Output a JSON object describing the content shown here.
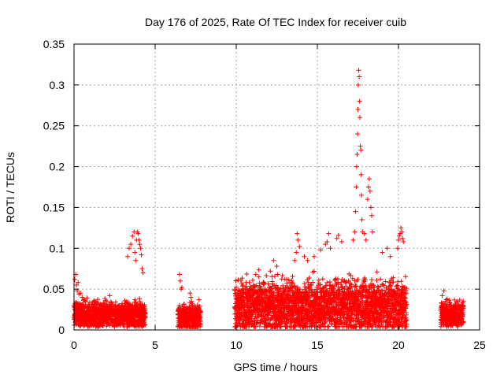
{
  "chart_data": {
    "type": "scatter",
    "title": "Day 176 of 2025, Rate Of TEC Index for receiver cuib",
    "xlabel": "GPS time / hours",
    "ylabel": "ROTI / TECUs",
    "xlim": [
      0,
      25
    ],
    "ylim": [
      0,
      0.35
    ],
    "xticks": [
      "0",
      "5",
      "10",
      "15",
      "20",
      "25"
    ],
    "yticks": [
      "0",
      "0.05",
      "0.1",
      "0.15",
      "0.2",
      "0.25",
      "0.3",
      "0.35"
    ],
    "grid": true,
    "marker": "+",
    "color": "#ff0000",
    "segments": [
      {
        "start": 0.0,
        "end": 4.4,
        "base": 0.015,
        "spread": 0.015
      },
      {
        "start": 6.4,
        "end": 7.8,
        "base": 0.012,
        "spread": 0.015
      },
      {
        "start": 9.9,
        "end": 20.5,
        "base": 0.022,
        "spread": 0.03
      },
      {
        "start": 22.6,
        "end": 24.0,
        "base": 0.015,
        "spread": 0.015
      }
    ],
    "points": [
      [
        0.05,
        0.062
      ],
      [
        0.1,
        0.068
      ],
      [
        0.15,
        0.055
      ],
      [
        0.2,
        0.048
      ],
      [
        0.3,
        0.044
      ],
      [
        0.4,
        0.045
      ],
      [
        0.5,
        0.04
      ],
      [
        0.25,
        0.058
      ],
      [
        1.8,
        0.033
      ],
      [
        2.2,
        0.042
      ],
      [
        2.8,
        0.03
      ],
      [
        3.3,
        0.09
      ],
      [
        3.4,
        0.1
      ],
      [
        3.5,
        0.105
      ],
      [
        3.6,
        0.115
      ],
      [
        3.7,
        0.12
      ],
      [
        3.75,
        0.095
      ],
      [
        3.8,
        0.085
      ],
      [
        3.85,
        0.11
      ],
      [
        3.9,
        0.12
      ],
      [
        3.95,
        0.118
      ],
      [
        4.0,
        0.11
      ],
      [
        4.05,
        0.105
      ],
      [
        4.1,
        0.1
      ],
      [
        4.15,
        0.092
      ],
      [
        4.2,
        0.075
      ],
      [
        4.25,
        0.07
      ],
      [
        6.5,
        0.068
      ],
      [
        6.55,
        0.06
      ],
      [
        6.6,
        0.05
      ],
      [
        6.65,
        0.052
      ],
      [
        7.15,
        0.045
      ],
      [
        7.2,
        0.04
      ],
      [
        7.25,
        0.035
      ],
      [
        7.3,
        0.032
      ],
      [
        10.1,
        0.048
      ],
      [
        10.4,
        0.05
      ],
      [
        10.8,
        0.058
      ],
      [
        11.2,
        0.068
      ],
      [
        11.4,
        0.065
      ],
      [
        12.1,
        0.072
      ],
      [
        12.3,
        0.085
      ],
      [
        12.5,
        0.078
      ],
      [
        13.0,
        0.062
      ],
      [
        13.6,
        0.085
      ],
      [
        13.7,
        0.095
      ],
      [
        13.75,
        0.118
      ],
      [
        13.8,
        0.11
      ],
      [
        13.9,
        0.102
      ],
      [
        14.2,
        0.09
      ],
      [
        14.4,
        0.085
      ],
      [
        14.8,
        0.09
      ],
      [
        15.2,
        0.098
      ],
      [
        15.5,
        0.105
      ],
      [
        15.6,
        0.108
      ],
      [
        15.7,
        0.118
      ],
      [
        15.8,
        0.1
      ],
      [
        16.2,
        0.112
      ],
      [
        16.3,
        0.116
      ],
      [
        16.5,
        0.108
      ],
      [
        17.2,
        0.11
      ],
      [
        17.3,
        0.12
      ],
      [
        17.35,
        0.145
      ],
      [
        17.4,
        0.175
      ],
      [
        17.42,
        0.2
      ],
      [
        17.45,
        0.215
      ],
      [
        17.48,
        0.24
      ],
      [
        17.5,
        0.27
      ],
      [
        17.52,
        0.3
      ],
      [
        17.55,
        0.318
      ],
      [
        17.58,
        0.31
      ],
      [
        17.6,
        0.28
      ],
      [
        17.62,
        0.26
      ],
      [
        17.65,
        0.225
      ],
      [
        17.68,
        0.22
      ],
      [
        17.7,
        0.19
      ],
      [
        17.72,
        0.165
      ],
      [
        17.75,
        0.135
      ],
      [
        17.78,
        0.12
      ],
      [
        17.9,
        0.118
      ],
      [
        18.0,
        0.11
      ],
      [
        18.1,
        0.16
      ],
      [
        18.15,
        0.175
      ],
      [
        18.2,
        0.185
      ],
      [
        18.25,
        0.17
      ],
      [
        18.3,
        0.15
      ],
      [
        18.35,
        0.14
      ],
      [
        18.4,
        0.12
      ],
      [
        19.0,
        0.095
      ],
      [
        19.3,
        0.1
      ],
      [
        19.5,
        0.09
      ],
      [
        19.95,
        0.1
      ],
      [
        20.0,
        0.11
      ],
      [
        20.05,
        0.115
      ],
      [
        20.1,
        0.118
      ],
      [
        20.15,
        0.125
      ],
      [
        20.2,
        0.12
      ],
      [
        20.25,
        0.112
      ],
      [
        20.3,
        0.108
      ],
      [
        22.7,
        0.042
      ],
      [
        22.8,
        0.048
      ],
      [
        22.9,
        0.035
      ],
      [
        23.0,
        0.038
      ],
      [
        23.5,
        0.03
      ],
      [
        23.9,
        0.025
      ]
    ]
  }
}
